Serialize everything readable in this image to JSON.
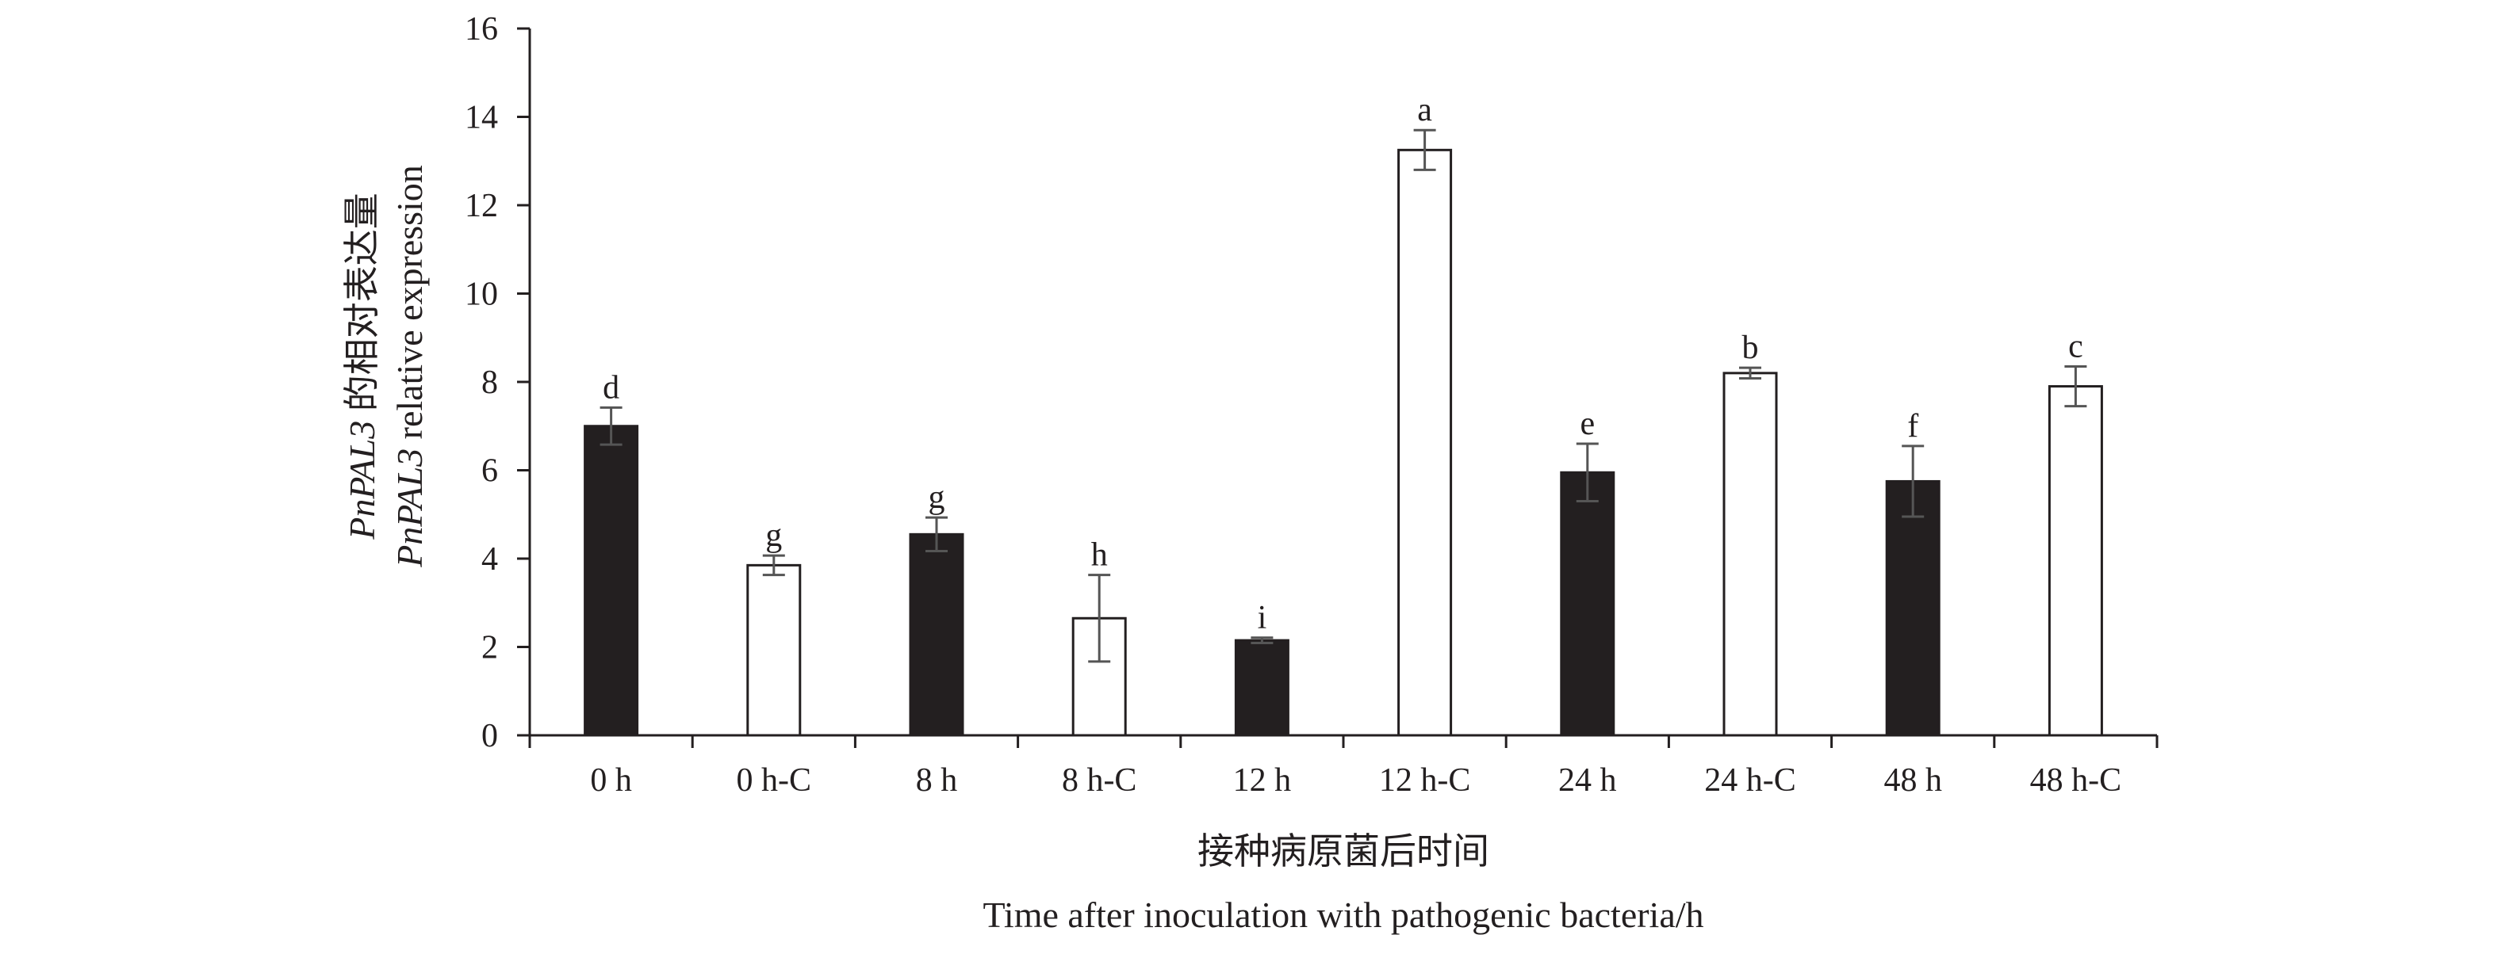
{
  "chart_data": {
    "type": "bar",
    "categories": [
      "0 h",
      "0 h-C",
      "8 h",
      "8 h-C",
      "12 h",
      "12 h-C",
      "24 h",
      "24 h-C",
      "48 h",
      "48 h-C"
    ],
    "values": [
      7.0,
      3.85,
      4.55,
      2.65,
      2.15,
      13.25,
      5.95,
      8.2,
      5.75,
      7.9
    ],
    "errors": [
      0.42,
      0.22,
      0.38,
      0.98,
      0.06,
      0.45,
      0.65,
      0.12,
      0.8,
      0.45
    ],
    "significance": [
      "d",
      "g",
      "g",
      "h",
      "i",
      "a",
      "e",
      "b",
      "f",
      "c"
    ],
    "bar_fill": [
      "#231f20",
      "#ffffff",
      "#231f20",
      "#ffffff",
      "#231f20",
      "#ffffff",
      "#231f20",
      "#ffffff",
      "#231f20",
      "#ffffff"
    ],
    "ylim": [
      0,
      16
    ],
    "yticks": [
      "0",
      "2",
      "4",
      "6",
      "8",
      "10",
      "12",
      "14",
      "16"
    ],
    "ylabel_line1_gene": "PnPAL3",
    "ylabel_line1_text": " 的相对表达量",
    "ylabel_line2_gene": "PnPAL3",
    "ylabel_line2_text": " relative expression",
    "xlabel_line1": "接种病原菌后时间",
    "xlabel_line2": "Time after inoculation with pathogenic bacteria/h",
    "grid": false,
    "legend": "none",
    "colors": {
      "axis": "#231f20",
      "dark_bar": "#231f20",
      "light_bar": "#ffffff",
      "error_bar": "#555555"
    }
  }
}
